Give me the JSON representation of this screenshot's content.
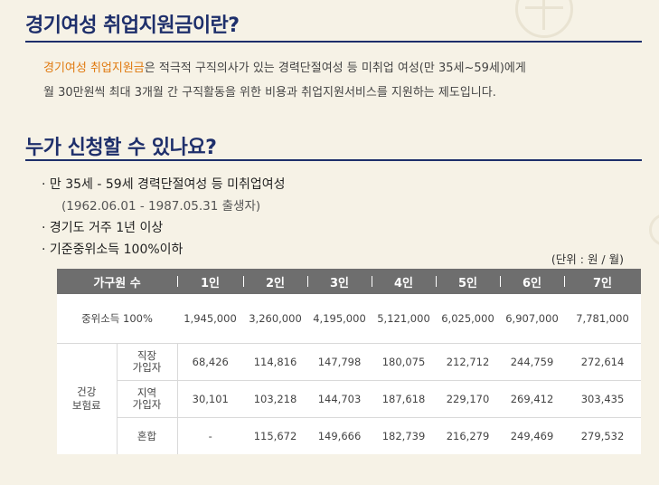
{
  "section1": {
    "title": "경기여성 취업지원금이란?",
    "highlight": "경기여성 취업지원금",
    "line1_rest": "은 적극적 구직의사가 있는 경력단절여성 등 미취업 여성(만 35세~59세)에게",
    "line2": "월 30만원씩 최대 3개월 간 구직활동을 위한 비용과 취업지원서비스를 지원하는 제도입니다."
  },
  "section2": {
    "title": "누가 신청할 수 있나요?",
    "bullets": [
      "· 만 35세 - 59세 경력단절여성 등 미취업여성",
      "(1962.06.01 - 1987.05.31 출생자)",
      "· 경기도 거주 1년 이상",
      "· 기준중위소득 100%이하"
    ],
    "unit": "(단위 : 원 / 월)"
  },
  "table": {
    "headers": [
      "가구원 수",
      "1인",
      "2인",
      "3인",
      "4인",
      "5인",
      "6인",
      "7인"
    ],
    "median": {
      "label": "중위소득 100%",
      "values": [
        "1,945,000",
        "3,260,000",
        "4,195,000",
        "5,121,000",
        "6,025,000",
        "6,907,000",
        "7,781,000"
      ]
    },
    "health_group": "건강\n보험료",
    "health_rows": [
      {
        "label": "직장\n가입자",
        "values": [
          "68,426",
          "114,816",
          "147,798",
          "180,075",
          "212,712",
          "244,759",
          "272,614"
        ]
      },
      {
        "label": "지역\n가입자",
        "values": [
          "30,101",
          "103,218",
          "144,703",
          "187,618",
          "229,170",
          "269,412",
          "303,435"
        ]
      },
      {
        "label": "혼합",
        "values": [
          "-",
          "115,672",
          "149,666",
          "182,739",
          "216,279",
          "249,469",
          "279,532"
        ]
      }
    ]
  }
}
